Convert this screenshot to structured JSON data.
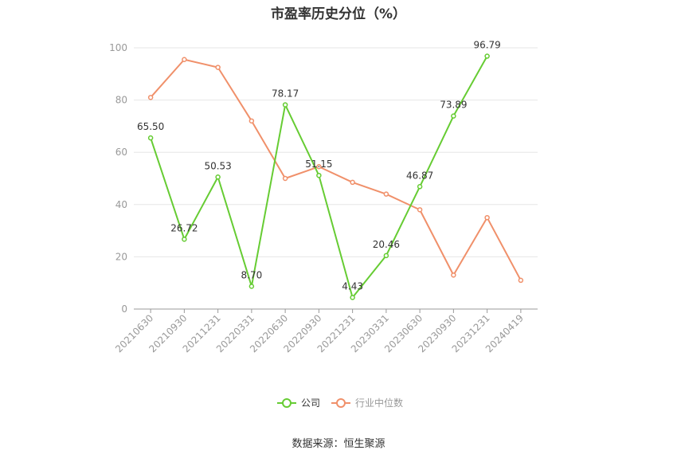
{
  "chart_data": {
    "type": "line",
    "title": "市盈率历史分位（%）",
    "categories": [
      "20210630",
      "20210930",
      "20211231",
      "20220331",
      "20220630",
      "20220930",
      "20221231",
      "20230331",
      "20230630",
      "20230930",
      "20231231",
      "20240419"
    ],
    "ylim": [
      0,
      100
    ],
    "yticks": [
      0,
      20,
      40,
      60,
      80,
      100
    ],
    "grid": true,
    "legend": "bottom-center",
    "series": [
      {
        "name": "公司",
        "color": "#66cc33",
        "values": [
          65.5,
          26.72,
          50.53,
          8.7,
          78.17,
          51.15,
          4.43,
          20.46,
          46.87,
          73.89,
          96.79,
          null
        ],
        "labels": [
          "65.50",
          "26.72",
          "50.53",
          "8.70",
          "78.17",
          "51.15",
          "4.43",
          "20.46",
          "46.87",
          "73.89",
          "96.79",
          ""
        ]
      },
      {
        "name": "行业中位数",
        "color": "#f0906a",
        "values": [
          81,
          95.5,
          92.5,
          72,
          50,
          54.5,
          48.5,
          44,
          38,
          13,
          35,
          11
        ]
      }
    ]
  },
  "source": "数据来源：恒生聚源"
}
